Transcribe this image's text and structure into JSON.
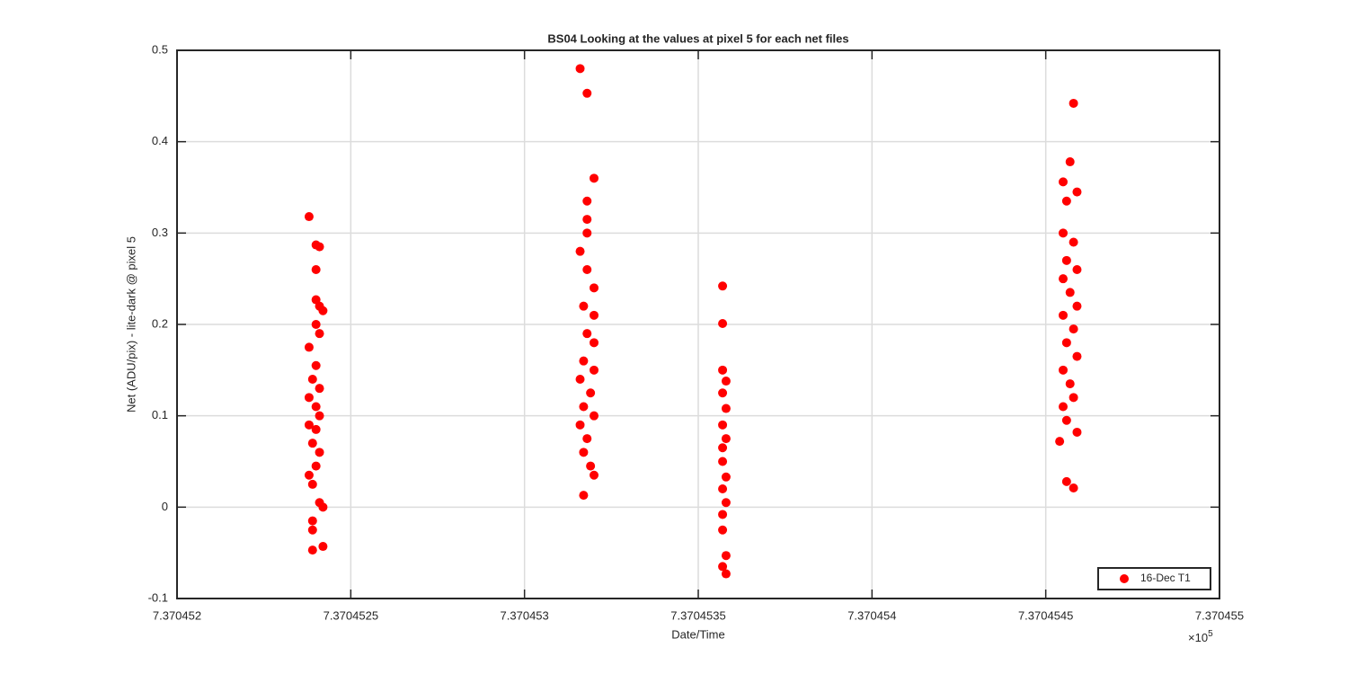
{
  "chart_data": {
    "type": "scatter",
    "title": "BS04  Looking at the values at pixel 5 for each net files",
    "x_label": "Date/Time",
    "y_label": "Net (ADU/pix) - lite-dark @ pixel 5",
    "x_multiplier": "×10",
    "x_exponent": "5",
    "xlim": [
      7.370452,
      7.370455
    ],
    "xticks": [
      7.370452,
      7.3704525,
      7.370453,
      7.3704535,
      7.370454,
      7.3704545,
      7.370455
    ],
    "ylim": [
      -0.1,
      0.5
    ],
    "yticks": [
      -0.1,
      0,
      0.1,
      0.2,
      0.3,
      0.4,
      0.5
    ],
    "grid": true,
    "legend_location": "southeast",
    "series": [
      {
        "name": "16-Dec T1",
        "color": "#ff0000",
        "x": [
          7.37045238,
          7.3704524,
          7.37045241,
          7.3704524,
          7.3704524,
          7.37045241,
          7.37045242,
          7.3704524,
          7.37045241,
          7.37045238,
          7.3704524,
          7.37045239,
          7.37045241,
          7.37045238,
          7.3704524,
          7.37045241,
          7.37045238,
          7.3704524,
          7.37045239,
          7.37045241,
          7.3704524,
          7.37045238,
          7.37045239,
          7.37045241,
          7.37045242,
          7.37045239,
          7.37045239,
          7.37045242,
          7.37045239,
          7.37045316,
          7.37045318,
          7.3704532,
          7.37045318,
          7.37045318,
          7.37045318,
          7.37045316,
          7.37045318,
          7.3704532,
          7.37045317,
          7.3704532,
          7.37045318,
          7.3704532,
          7.37045317,
          7.3704532,
          7.37045316,
          7.37045319,
          7.37045317,
          7.3704532,
          7.37045316,
          7.37045318,
          7.37045317,
          7.37045319,
          7.3704532,
          7.37045317,
          7.37045357,
          7.37045357,
          7.37045357,
          7.37045358,
          7.37045357,
          7.37045358,
          7.37045357,
          7.37045358,
          7.37045357,
          7.37045357,
          7.37045358,
          7.37045357,
          7.37045358,
          7.37045357,
          7.37045357,
          7.37045358,
          7.37045357,
          7.37045358,
          7.37045458,
          7.37045457,
          7.37045455,
          7.37045459,
          7.37045456,
          7.37045455,
          7.37045458,
          7.37045456,
          7.37045459,
          7.37045455,
          7.37045457,
          7.37045459,
          7.37045455,
          7.37045458,
          7.37045456,
          7.37045459,
          7.37045455,
          7.37045457,
          7.37045458,
          7.37045455,
          7.37045456,
          7.37045459,
          7.37045454,
          7.37045456,
          7.37045458
        ],
        "values": [
          0.318,
          0.287,
          0.285,
          0.26,
          0.227,
          0.22,
          0.215,
          0.2,
          0.19,
          0.175,
          0.155,
          0.14,
          0.13,
          0.12,
          0.11,
          0.1,
          0.09,
          0.085,
          0.07,
          0.06,
          0.045,
          0.035,
          0.025,
          0.005,
          0,
          -0.015,
          -0.025,
          -0.043,
          -0.047,
          0.48,
          0.453,
          0.36,
          0.335,
          0.315,
          0.3,
          0.28,
          0.26,
          0.24,
          0.22,
          0.21,
          0.19,
          0.18,
          0.16,
          0.15,
          0.14,
          0.125,
          0.11,
          0.1,
          0.09,
          0.075,
          0.06,
          0.045,
          0.035,
          0.013,
          0.242,
          0.201,
          0.15,
          0.138,
          0.125,
          0.108,
          0.09,
          0.075,
          0.065,
          0.05,
          0.033,
          0.02,
          0.005,
          -0.008,
          -0.025,
          -0.053,
          -0.065,
          -0.073,
          0.442,
          0.378,
          0.356,
          0.345,
          0.335,
          0.3,
          0.29,
          0.27,
          0.26,
          0.25,
          0.235,
          0.22,
          0.21,
          0.195,
          0.18,
          0.165,
          0.15,
          0.135,
          0.12,
          0.11,
          0.095,
          0.082,
          0.072,
          0.028,
          0.021
        ]
      }
    ]
  }
}
